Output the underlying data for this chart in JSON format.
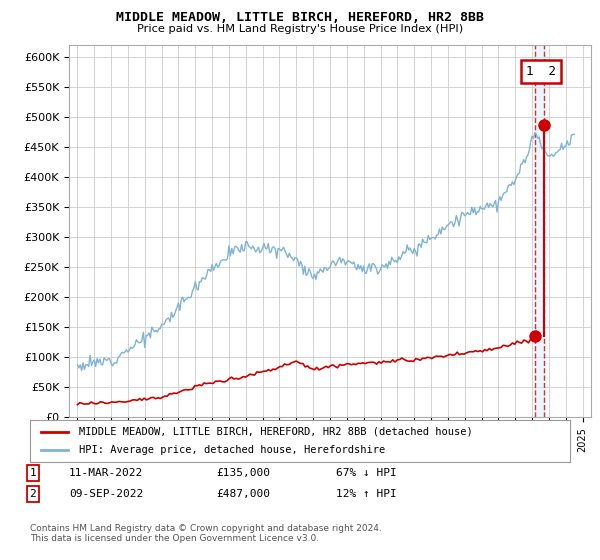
{
  "title": "MIDDLE MEADOW, LITTLE BIRCH, HEREFORD, HR2 8BB",
  "subtitle": "Price paid vs. HM Land Registry's House Price Index (HPI)",
  "ylabel_ticks": [
    "£0",
    "£50K",
    "£100K",
    "£150K",
    "£200K",
    "£250K",
    "£300K",
    "£350K",
    "£400K",
    "£450K",
    "£500K",
    "£550K",
    "£600K"
  ],
  "ylim": [
    0,
    620000
  ],
  "ytick_vals": [
    0,
    50000,
    100000,
    150000,
    200000,
    250000,
    300000,
    350000,
    400000,
    450000,
    500000,
    550000,
    600000
  ],
  "hpi_color": "#7fb3d3",
  "price_color": "#cc0000",
  "transaction_1": {
    "date": "11-MAR-2022",
    "price": 135000,
    "pct": "67% ↓ HPI",
    "label": "1"
  },
  "transaction_2": {
    "date": "09-SEP-2022",
    "price": 487000,
    "pct": "12% ↑ HPI",
    "label": "2"
  },
  "legend_red_label": "MIDDLE MEADOW, LITTLE BIRCH, HEREFORD, HR2 8BB (detached house)",
  "legend_blue_label": "HPI: Average price, detached house, Herefordshire",
  "footer": "Contains HM Land Registry data © Crown copyright and database right 2024.\nThis data is licensed under the Open Government Licence v3.0.",
  "background_color": "#ffffff",
  "grid_color": "#cccccc",
  "x_start_year": 1995,
  "x_end_year": 2025,
  "t1_year": 2022.2,
  "t2_year": 2022.7,
  "t1_price": 135000,
  "t2_price": 487000
}
